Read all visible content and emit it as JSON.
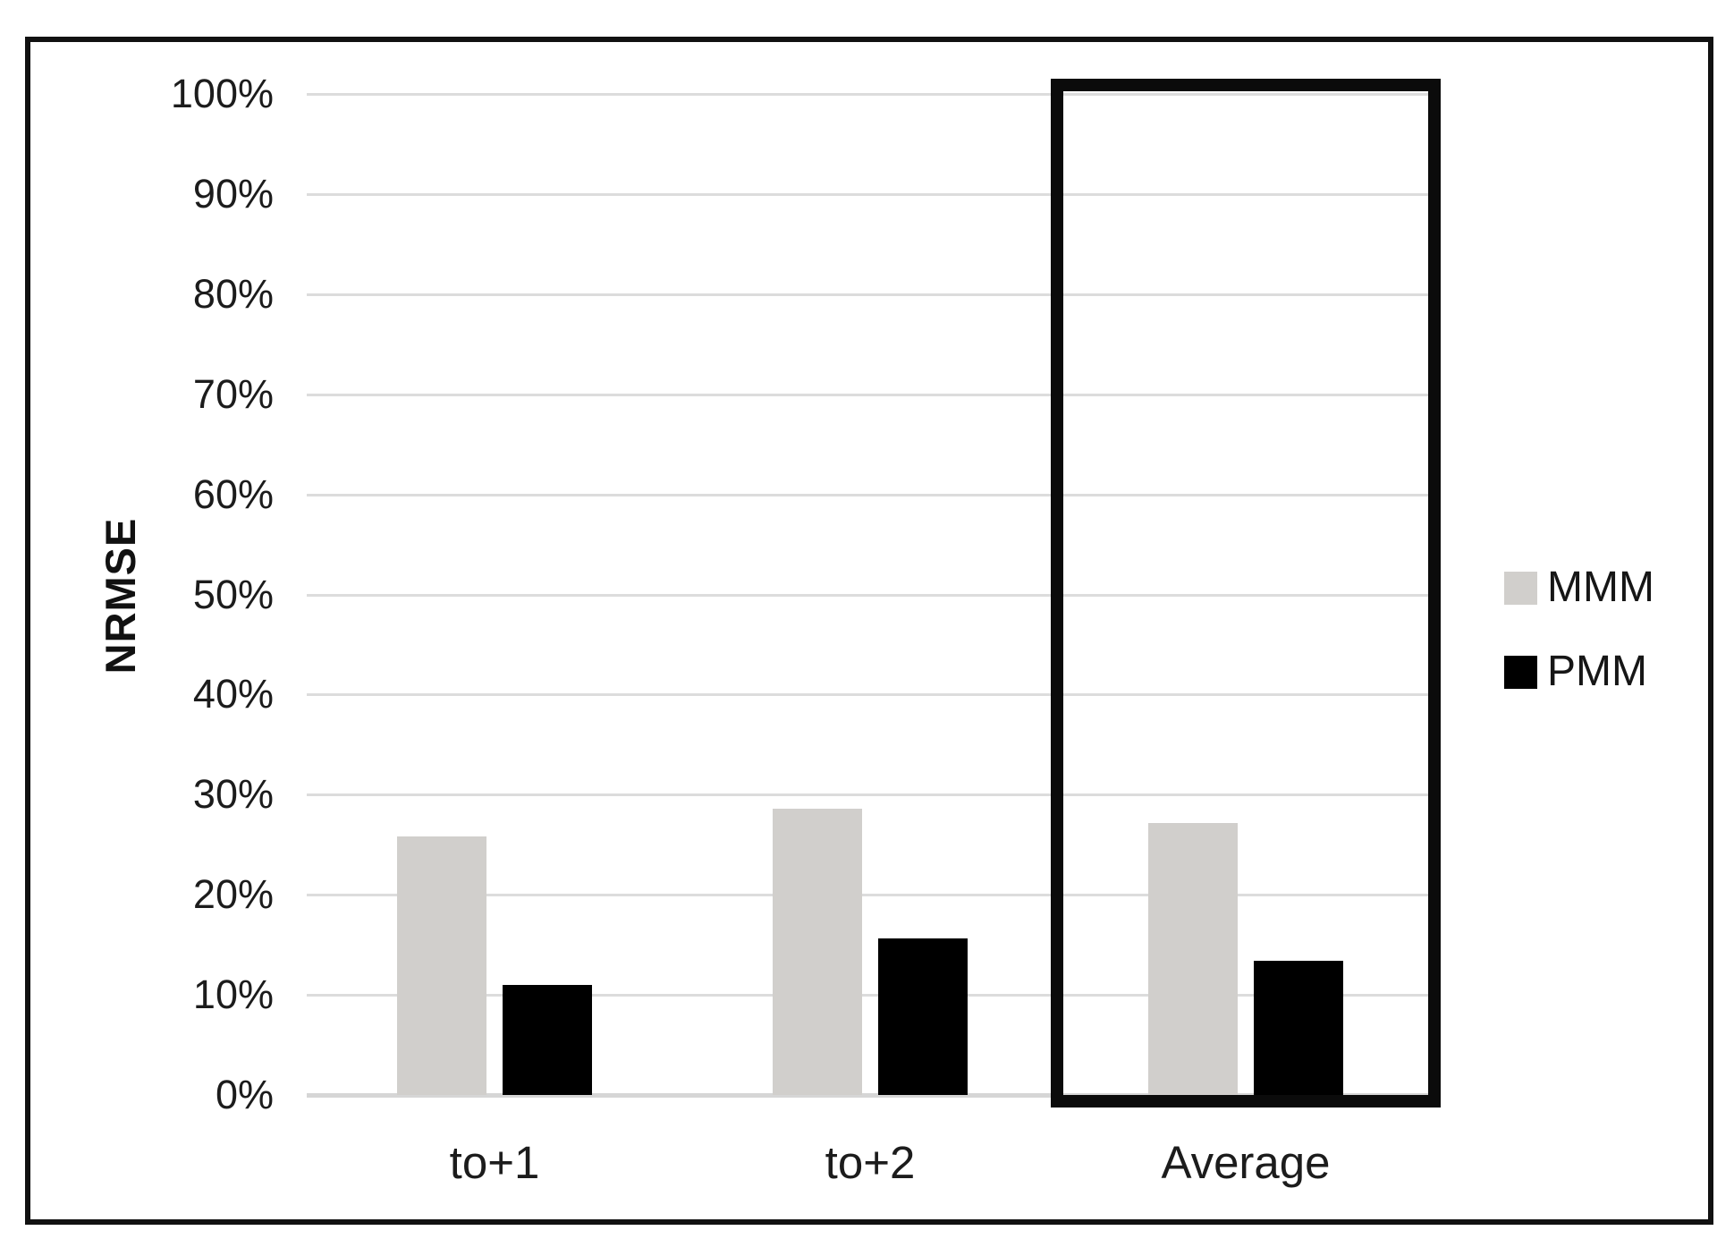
{
  "chart_data": {
    "type": "bar",
    "title": "",
    "xlabel": "",
    "ylabel": "NRMSE",
    "categories": [
      "to+1",
      "to+2",
      "Average"
    ],
    "series": [
      {
        "name": "MMM",
        "color": "#d1cfcc",
        "values": [
          25.8,
          28.6,
          27.2
        ]
      },
      {
        "name": "PMM",
        "color": "#000000",
        "values": [
          11.0,
          15.6,
          13.4
        ]
      }
    ],
    "ylim": [
      0,
      100
    ],
    "y_tick_step": 10,
    "y_tick_labels": [
      "0%",
      "10%",
      "20%",
      "30%",
      "40%",
      "50%",
      "60%",
      "70%",
      "80%",
      "90%",
      "100%"
    ],
    "y_tick_unit": "percent",
    "grid": "horizontal",
    "gridline_color": "#dcdcdc",
    "axis_line_color": "#d6d6d6",
    "legend_position": "right",
    "annotation": {
      "type": "highlight-box",
      "category": "Average",
      "color": "#0b0b0b"
    }
  }
}
